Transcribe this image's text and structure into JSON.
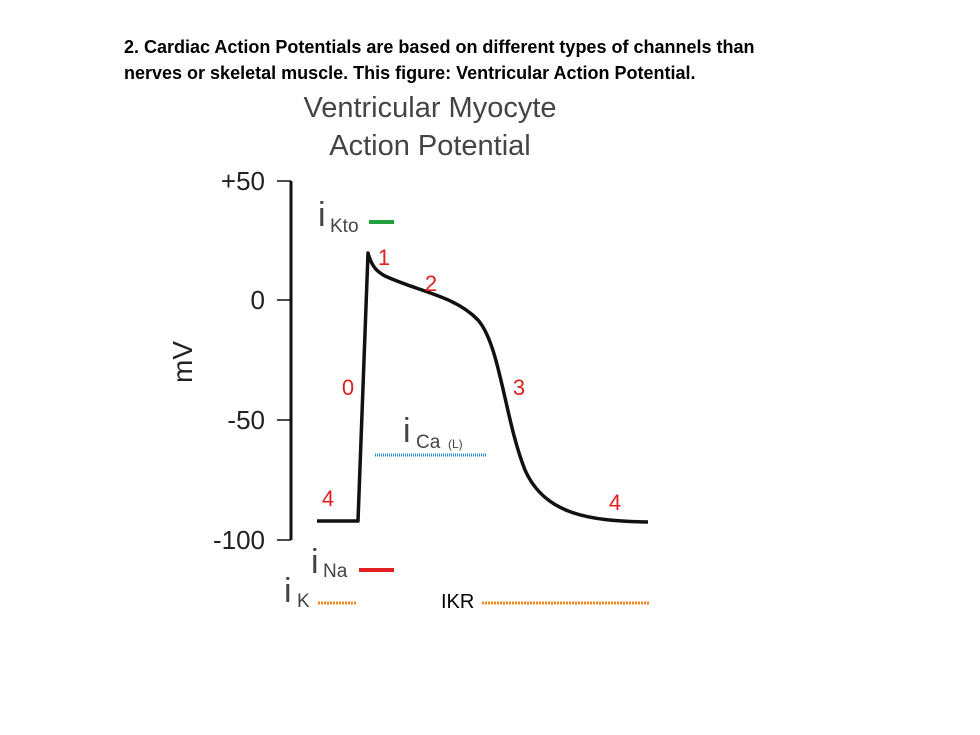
{
  "caption": {
    "line1": "2. Cardiac Action Potentials are based on different types of channels than",
    "line2": "nerves or skeletal muscle.  This figure:  Ventricular Action Potential."
  },
  "figure": {
    "title_line1": "Ventricular Myocyte",
    "title_line2": "Action Potential",
    "y_axis_label": "mV",
    "y_ticks": [
      {
        "label": "+50",
        "value": 50
      },
      {
        "label": "0",
        "value": 0
      },
      {
        "label": "-50",
        "value": -50
      },
      {
        "label": "-100",
        "value": -100
      }
    ],
    "phases": [
      {
        "label": "0",
        "color": "#e02020"
      },
      {
        "label": "1",
        "color": "#e02020"
      },
      {
        "label": "2",
        "color": "#e02020"
      },
      {
        "label": "3",
        "color": "#e02020"
      },
      {
        "label": "4",
        "color": "#e02020"
      },
      {
        "label": "4",
        "color": "#e02020"
      }
    ],
    "currents": {
      "ikto": {
        "i": "i",
        "sub": "Kto",
        "color": "#22a040"
      },
      "ica": {
        "i": "i",
        "sub": "Ca",
        "sub2": "(L)",
        "color": "#2288dd"
      },
      "ina": {
        "i": "i",
        "sub": "Na",
        "color": "#e02020"
      },
      "ik": {
        "i": "i",
        "sub": "K",
        "color": "#f08a20"
      },
      "ikr": {
        "label": "IKR",
        "color": "#f08a20"
      }
    },
    "trace_color": "#111111"
  }
}
